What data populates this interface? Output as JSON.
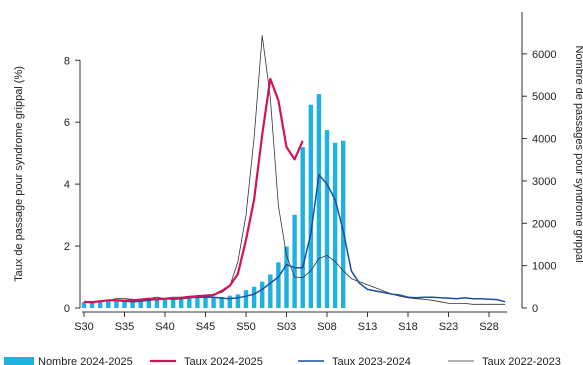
{
  "chart_data": {
    "type": "bar",
    "x_ticks": [
      "S30",
      "S35",
      "S40",
      "S45",
      "S50",
      "S03",
      "S08",
      "S13",
      "S18",
      "S23",
      "S28"
    ],
    "y_left": {
      "label": "Taux de passage pour syndrome grippal (%)",
      "ticks": [
        0,
        2,
        4,
        6,
        8
      ],
      "range": [
        0,
        9.3
      ]
    },
    "y_right": {
      "label": "Nombre de passages pour syndrome grippal",
      "ticks": [
        0,
        1000,
        2000,
        3000,
        4000,
        5000,
        6000
      ],
      "range": [
        0,
        6800
      ]
    },
    "weeks_from_S30": [
      0,
      1,
      2,
      3,
      4,
      5,
      6,
      7,
      8,
      9,
      10,
      11,
      12,
      13,
      14,
      15,
      16,
      17,
      18,
      19,
      20,
      21,
      22,
      23,
      24,
      25,
      26,
      27,
      28,
      29,
      30,
      31,
      32,
      33,
      34,
      35,
      36,
      37,
      38,
      39,
      40,
      41,
      42,
      43,
      44,
      45,
      46,
      47,
      48,
      49,
      50,
      51,
      52
    ],
    "series": [
      {
        "name": "Nombre 2024-2025",
        "type": "bar",
        "axis": "right",
        "color": "#1fb2de",
        "values": [
          140,
          150,
          160,
          165,
          170,
          175,
          170,
          175,
          185,
          200,
          205,
          220,
          230,
          240,
          250,
          245,
          255,
          260,
          290,
          320,
          420,
          500,
          620,
          790,
          1080,
          1450,
          2200,
          3800,
          4800,
          5050,
          4200,
          3900,
          3950
        ]
      },
      {
        "name": "Taux 2024-2025",
        "type": "line",
        "axis": "left",
        "color": "#d6125a",
        "values": [
          0.2,
          0.18,
          0.22,
          0.25,
          0.25,
          0.23,
          0.25,
          0.27,
          0.3,
          0.28,
          0.3,
          0.33,
          0.33,
          0.35,
          0.38,
          0.4,
          0.42,
          0.55,
          0.72,
          1.1,
          2.2,
          3.5,
          5.6,
          7.4,
          6.7,
          5.2,
          4.8,
          5.4
        ]
      },
      {
        "name": "Taux 2023-2024",
        "type": "line",
        "axis": "left",
        "color": "#1a4fa0",
        "values": [
          0.2,
          0.2,
          0.22,
          0.25,
          0.25,
          0.22,
          0.2,
          0.22,
          0.25,
          0.28,
          0.3,
          0.28,
          0.3,
          0.33,
          0.35,
          0.35,
          0.35,
          0.32,
          0.3,
          0.33,
          0.38,
          0.45,
          0.6,
          0.8,
          1.0,
          1.4,
          1.3,
          1.3,
          2.4,
          4.3,
          4.0,
          3.5,
          2.5,
          1.2,
          0.8,
          0.6,
          0.55,
          0.5,
          0.45,
          0.42,
          0.35,
          0.33,
          0.35,
          0.35,
          0.33,
          0.32,
          0.3,
          0.33,
          0.3,
          0.3,
          0.28,
          0.27,
          0.2
        ]
      },
      {
        "name": "Taux 2022-2023",
        "type": "line",
        "axis": "left",
        "color": "#333333",
        "values": [
          0.22,
          0.18,
          0.2,
          0.25,
          0.3,
          0.3,
          0.28,
          0.25,
          0.3,
          0.35,
          0.3,
          0.32,
          0.35,
          0.38,
          0.4,
          0.38,
          0.45,
          0.5,
          0.7,
          1.5,
          3.0,
          5.5,
          8.8,
          6.8,
          3.3,
          1.7,
          1.0,
          0.98,
          1.2,
          1.6,
          1.7,
          1.5,
          1.2,
          0.95,
          0.85,
          0.75,
          0.65,
          0.55,
          0.45,
          0.38,
          0.33,
          0.3,
          0.28,
          0.25,
          0.2,
          0.15,
          0.15,
          0.15,
          0.12,
          0.12,
          0.12,
          0.12,
          0.12
        ]
      }
    ],
    "legend_position": "bottom",
    "grid": false
  }
}
